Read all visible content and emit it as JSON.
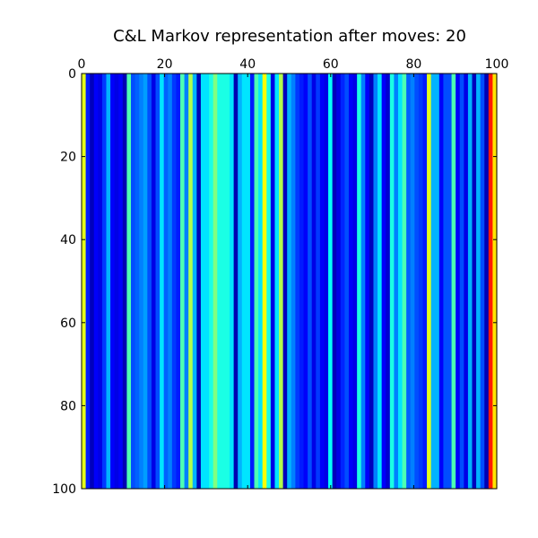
{
  "chart_data": {
    "type": "heatmap",
    "title": "C&L Markov representation after moves: 20",
    "xlabel": "",
    "ylabel": "",
    "colormap": "jet",
    "x_axis_position": "top",
    "y_axis_inverted": true,
    "grid": false,
    "xlim": [
      0,
      100
    ],
    "ylim": [
      100,
      0
    ],
    "x_ticks": [
      0,
      20,
      40,
      60,
      80,
      100
    ],
    "y_ticks": [
      0,
      20,
      40,
      60,
      80,
      100
    ],
    "value_range": [
      0,
      1
    ],
    "column_values": [
      0.6,
      0.15,
      0.06,
      0.12,
      0.1,
      0.18,
      0.3,
      0.12,
      0.1,
      0.12,
      0.05,
      0.45,
      0.2,
      0.22,
      0.25,
      0.28,
      0.2,
      0.1,
      0.2,
      0.35,
      0.22,
      0.25,
      0.18,
      0.15,
      0.45,
      0.25,
      0.55,
      0.3,
      0.05,
      0.35,
      0.35,
      0.4,
      0.5,
      0.4,
      0.4,
      0.4,
      0.35,
      0.05,
      0.3,
      0.35,
      0.35,
      0.15,
      0.45,
      0.35,
      0.62,
      0.4,
      0.1,
      0.35,
      0.55,
      0.06,
      0.3,
      0.25,
      0.18,
      0.15,
      0.12,
      0.2,
      0.1,
      0.18,
      0.12,
      0.1,
      0.38,
      0.06,
      0.1,
      0.16,
      0.2,
      0.12,
      0.1,
      0.4,
      0.25,
      0.12,
      0.06,
      0.25,
      0.35,
      0.12,
      0.08,
      0.4,
      0.25,
      0.35,
      0.45,
      0.22,
      0.25,
      0.2,
      0.18,
      0.15,
      0.6,
      0.3,
      0.3,
      0.12,
      0.2,
      0.2,
      0.45,
      0.12,
      0.2,
      0.1,
      0.3,
      0.06,
      0.3,
      0.2,
      0.05,
      0.85,
      0.65
    ]
  }
}
